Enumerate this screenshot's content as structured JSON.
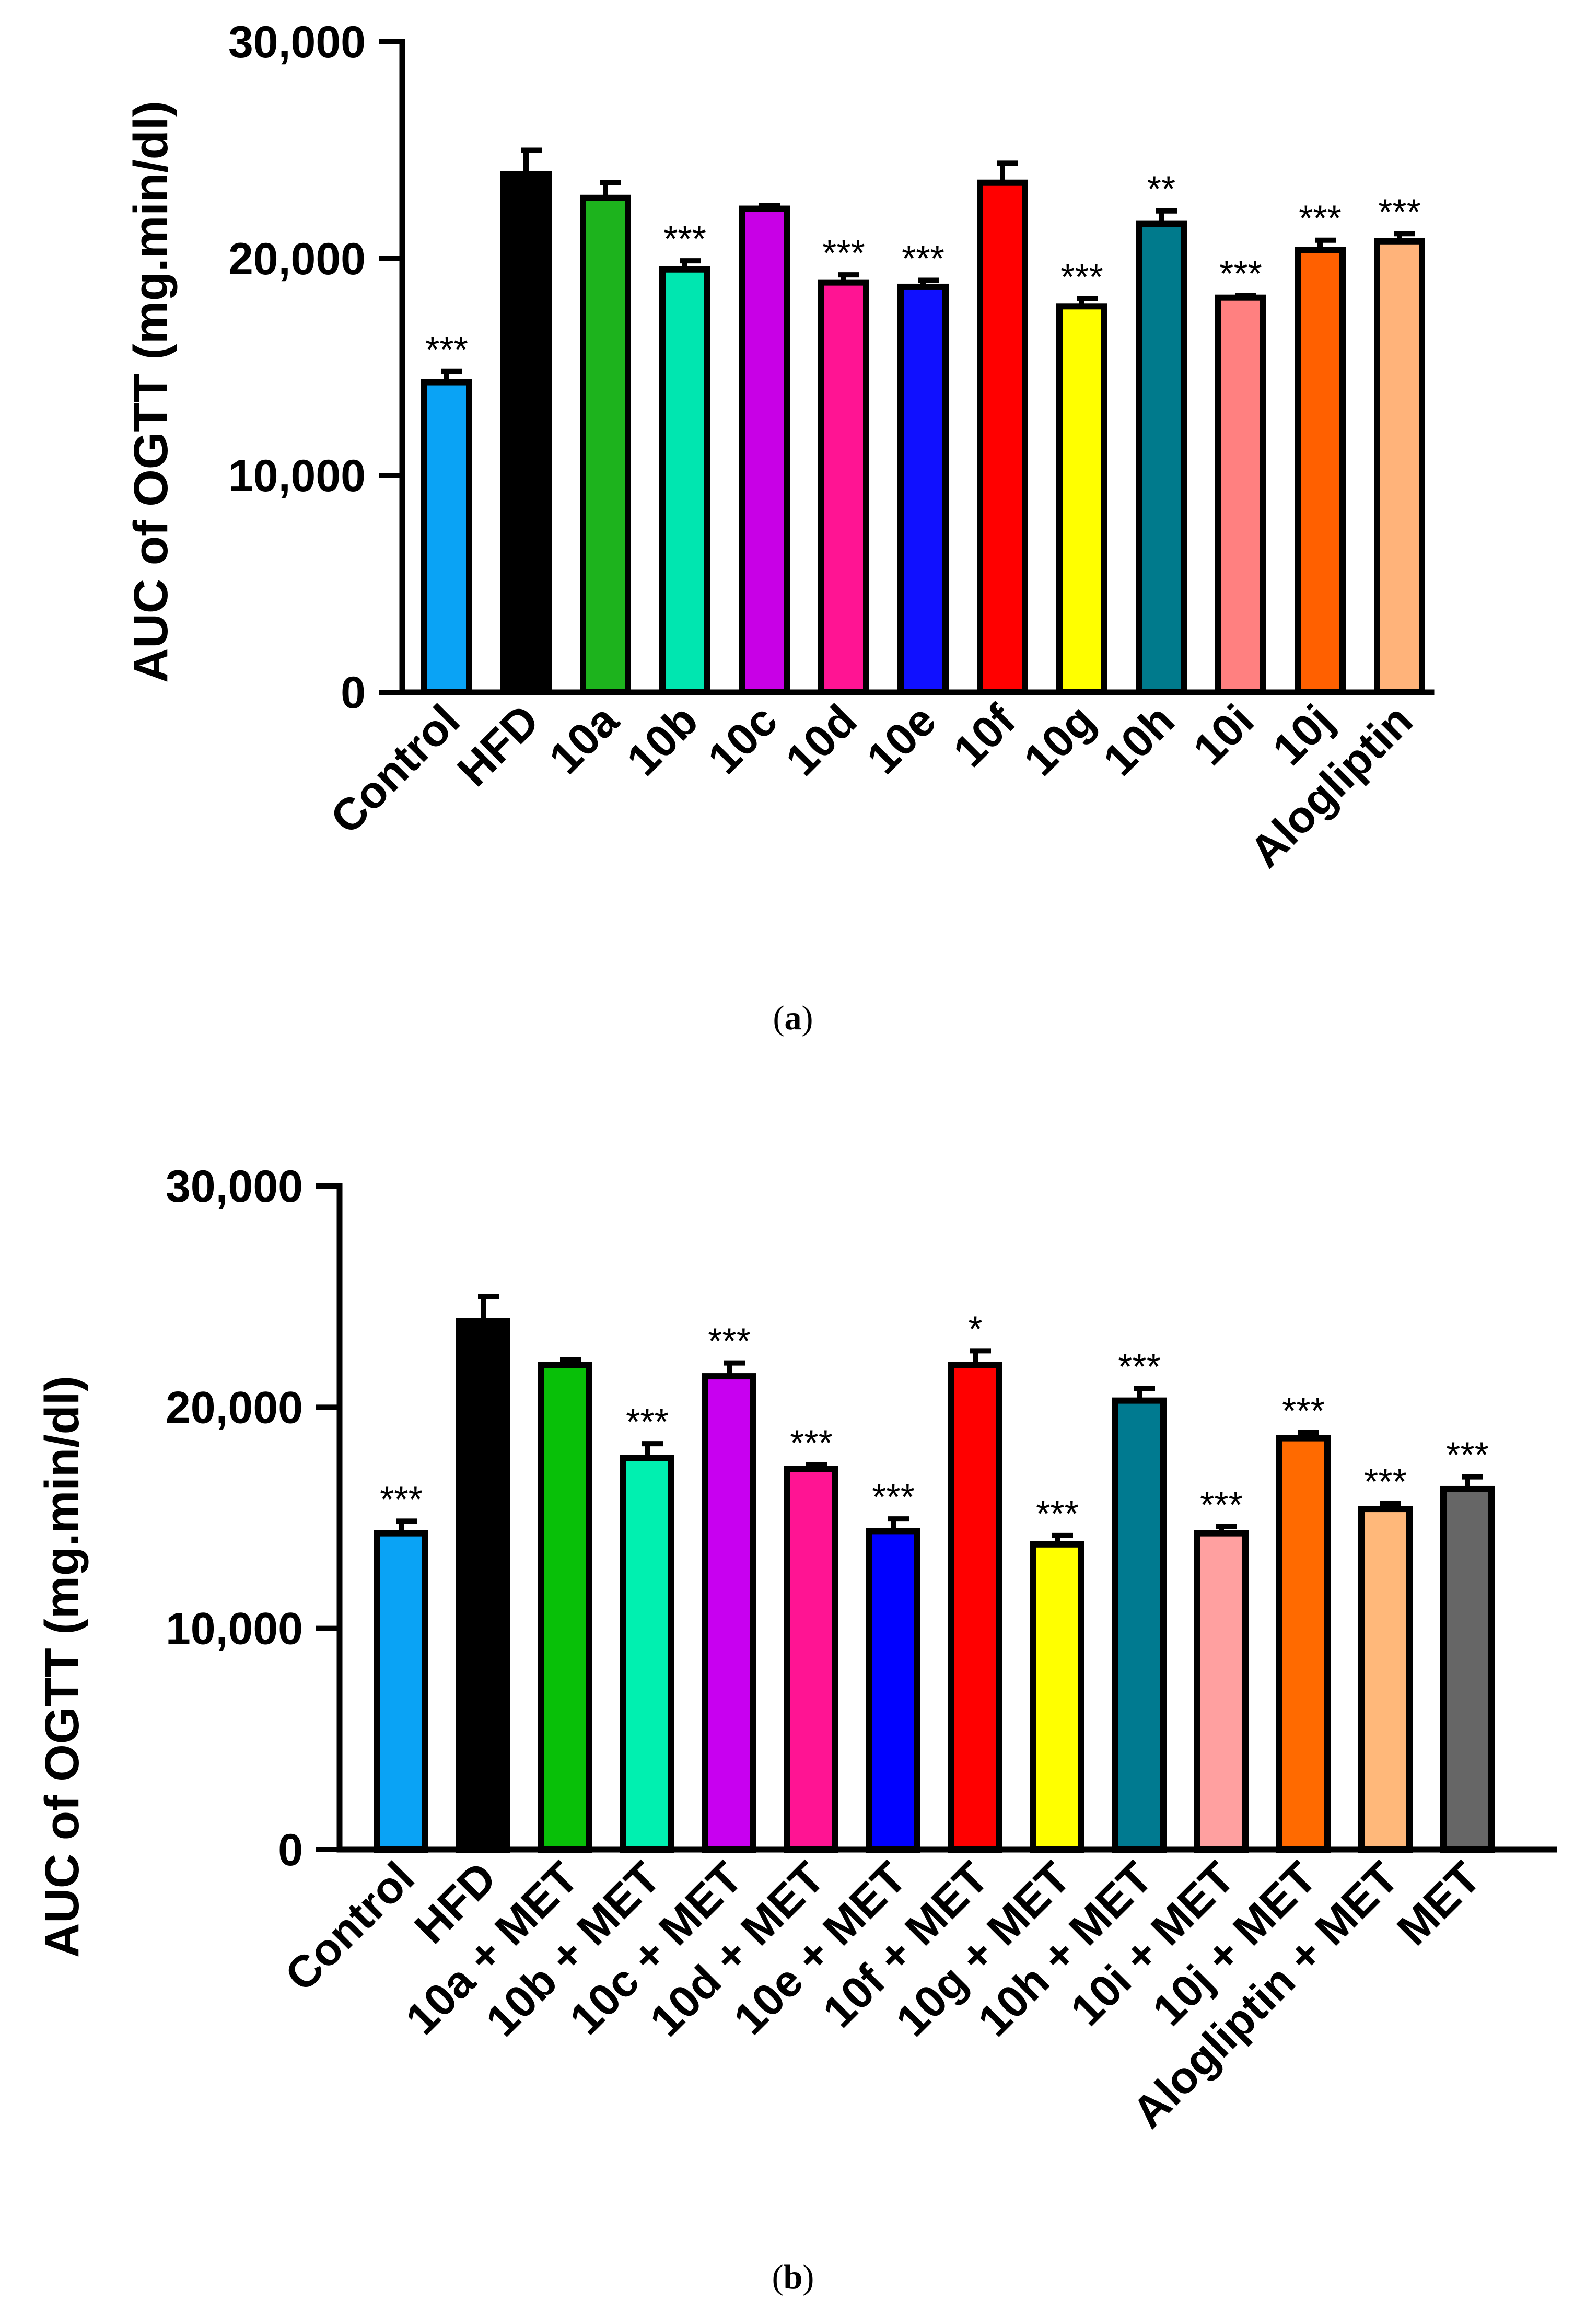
{
  "chart_data": [
    {
      "id": "a",
      "type": "bar",
      "panel_label_open": "(",
      "panel_label_letter": "a",
      "panel_label_close": ")",
      "ylabel": "AUC of OGTT (mg.min/dl)",
      "ylim": [
        0,
        30000
      ],
      "yticks": [
        0,
        10000,
        20000,
        30000
      ],
      "ytick_labels": [
        "0",
        "10,000",
        "20,000",
        "30,000"
      ],
      "categories": [
        "Control",
        "HFD",
        "10a",
        "10b",
        "10c",
        "10d",
        "10e",
        "10f",
        "10g",
        "10h",
        "10i",
        "10j",
        "Alogliptin"
      ],
      "values": [
        14300,
        23900,
        22800,
        19500,
        22300,
        18900,
        18700,
        23500,
        17800,
        21600,
        18200,
        20400,
        20800
      ],
      "errors": [
        500,
        1100,
        700,
        400,
        150,
        350,
        300,
        900,
        350,
        600,
        100,
        450,
        350
      ],
      "significance": [
        "***",
        "",
        "",
        "***",
        "",
        "***",
        "***",
        "",
        "***",
        "**",
        "***",
        "***",
        "***"
      ],
      "colors": [
        "#0aa3f5",
        "#000000",
        "#1db31d",
        "#00e6b0",
        "#c800e6",
        "#ff1493",
        "#1010ff",
        "#ff0000",
        "#ffff00",
        "#007a8c",
        "#ff8080",
        "#ff6000",
        "#ffb37a"
      ]
    },
    {
      "id": "b",
      "type": "bar",
      "panel_label_open": "(",
      "panel_label_letter": "b",
      "panel_label_close": ")",
      "ylabel": "AUC of OGTT (mg.min/dl)",
      "ylim": [
        0,
        30000
      ],
      "yticks": [
        0,
        10000,
        20000,
        30000
      ],
      "ytick_labels": [
        "0",
        "10,000",
        "20,000",
        "30,000"
      ],
      "categories": [
        "Control",
        "HFD",
        "10a + MET",
        "10b + MET",
        "10c + MET",
        "10d + MET",
        "10e + MET",
        "10f + MET",
        "10g + MET",
        "10h + MET",
        "10i + MET",
        "10j + MET",
        "Alogliptin + MET",
        "MET"
      ],
      "values": [
        14300,
        23900,
        21900,
        17700,
        21400,
        17200,
        14400,
        21900,
        13800,
        20300,
        14300,
        18600,
        15400,
        16300
      ],
      "errors": [
        550,
        1100,
        250,
        650,
        600,
        200,
        550,
        650,
        400,
        550,
        300,
        250,
        250,
        550
      ],
      "significance": [
        "***",
        "",
        "",
        "***",
        "***",
        "***",
        "***",
        "*",
        "***",
        "***",
        "***",
        "***",
        "***",
        "***"
      ],
      "colors": [
        "#0aa3f5",
        "#000000",
        "#08c008",
        "#00f0b0",
        "#c800f0",
        "#ff1493",
        "#0000ff",
        "#ff0000",
        "#ffff00",
        "#007a90",
        "#ffa0a0",
        "#ff6a00",
        "#ffb87a",
        "#666666"
      ]
    }
  ]
}
